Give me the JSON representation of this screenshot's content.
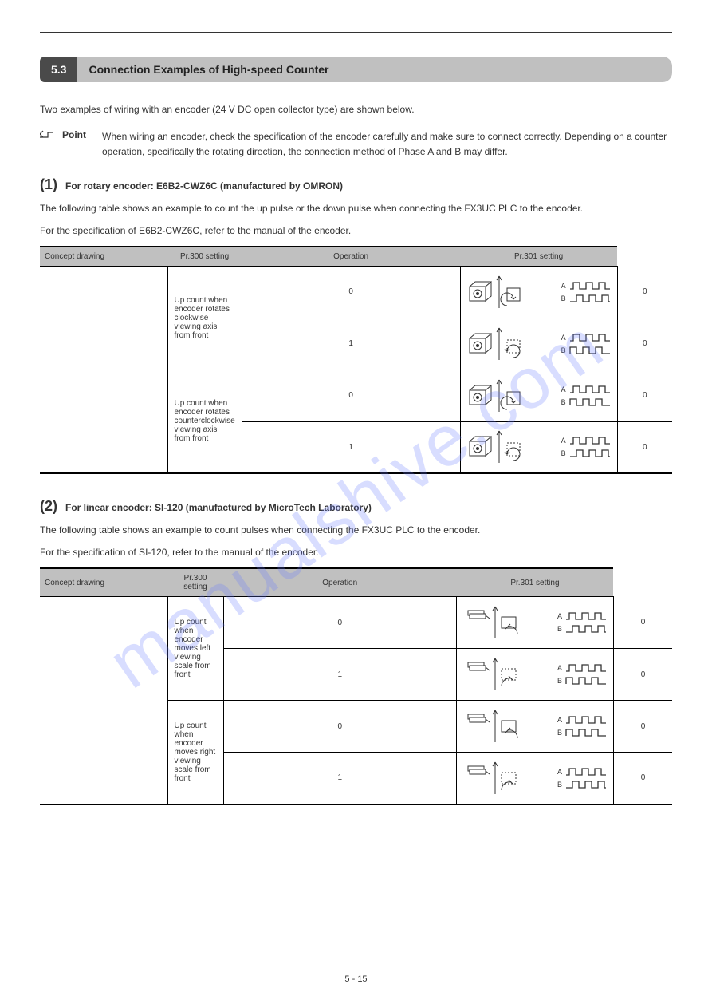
{
  "watermark": "manualshive.com",
  "section": {
    "number": "5.3",
    "title": "Connection Examples of High-speed Counter"
  },
  "intro": "Two examples of wiring with an encoder (24 V DC open collector type) are shown below.",
  "point": {
    "label": "Point",
    "text": "When wiring an encoder, check the specification of the encoder carefully and make sure to connect correctly. Depending on a counter operation, specifically the rotating direction, the connection method of Phase A and B may differ."
  },
  "encoder1": {
    "heading_num": "(1)",
    "heading_text": "For rotary encoder: E6B2-CWZ6C (manufactured by OMRON)",
    "desc": "The following table shows an example to count the up pulse or the down pulse when connecting the FX3UC PLC to the encoder.",
    "table": {
      "headers": [
        "Concept drawing",
        "Pr.300 setting",
        "Operation",
        "Pr.301 setting"
      ],
      "groups": [
        {
          "concept": "Up count when encoder rotates clockwise viewing axis from front",
          "rows": [
            {
              "pr300": "0",
              "pr301": "0",
              "motor_dir": "cw",
              "phase": "ab_lead"
            },
            {
              "pr300": "1",
              "pr301": "0",
              "motor_dir": "ccw",
              "phase": "ba_lead"
            }
          ]
        },
        {
          "concept": "Up count when encoder rotates counterclockwise viewing axis from front",
          "rows": [
            {
              "pr300": "0",
              "pr301": "0",
              "motor_dir": "cw",
              "phase": "ba_lead"
            },
            {
              "pr300": "1",
              "pr301": "0",
              "motor_dir": "ccw",
              "phase": "ab_lead"
            }
          ]
        }
      ]
    }
  },
  "encoder2": {
    "heading_num": "(2)",
    "heading_text": "For linear encoder: SI-120 (manufactured by MicroTech Laboratory)",
    "desc": "The following table shows an example to count pulses when connecting the FX3UC PLC to the encoder.",
    "table": {
      "headers": [
        "Concept drawing",
        "Pr.300 setting",
        "Operation",
        "Pr.301 setting"
      ],
      "groups": [
        {
          "concept": "Up count when encoder moves left viewing scale from front",
          "rows": [
            {
              "pr300": "0",
              "pr301": "0",
              "motor_dir": "left",
              "phase": "ab_lead"
            },
            {
              "pr300": "1",
              "pr301": "0",
              "motor_dir": "right",
              "phase": "ba_lead"
            }
          ]
        },
        {
          "concept": "Up count when encoder moves right viewing scale from front",
          "rows": [
            {
              "pr300": "0",
              "pr301": "0",
              "motor_dir": "left",
              "phase": "ba_lead"
            },
            {
              "pr300": "1",
              "pr301": "0",
              "motor_dir": "right",
              "phase": "ab_lead"
            }
          ]
        }
      ]
    }
  },
  "waveform_labels": {
    "a": "A",
    "b": "B"
  },
  "page_number": "5 - 15",
  "colors": {
    "header_dark": "#4a4a4a",
    "header_light": "#c0c0c0",
    "text": "#333333",
    "watermark": "rgba(100, 120, 255, 0.25)"
  }
}
